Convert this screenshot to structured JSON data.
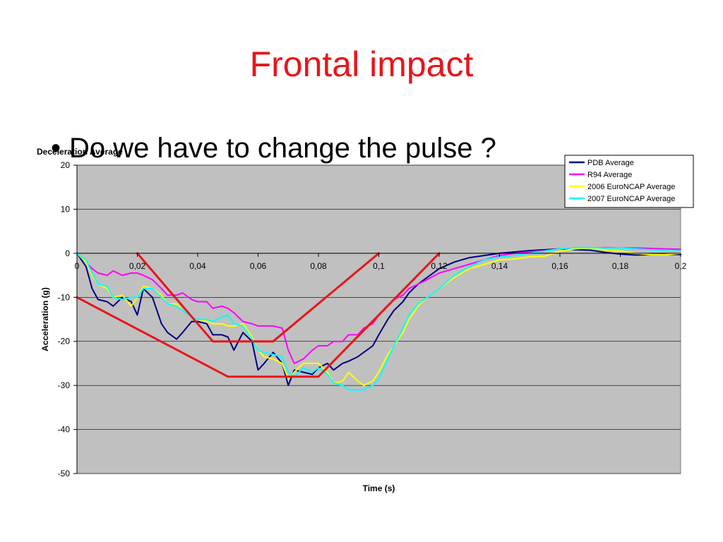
{
  "slide": {
    "title": "Frontal impact",
    "bullet_text": "Do we have to change the pulse ?"
  },
  "chart_data": {
    "type": "line",
    "title": "Deceleration Average",
    "xlabel": "Time (s)",
    "ylabel": "Acceleration (g)",
    "xlim": [
      0,
      0.2
    ],
    "ylim": [
      -50,
      20
    ],
    "xticks": [
      0,
      0.02,
      0.04,
      0.06,
      0.08,
      0.1,
      0.12,
      0.14,
      0.16,
      0.18,
      0.2
    ],
    "xtick_labels": [
      "0",
      "0,02",
      "0,04",
      "0,06",
      "0,08",
      "0,1",
      "0,12",
      "0,14",
      "0,16",
      "0,18",
      "0,2"
    ],
    "yticks": [
      20,
      10,
      0,
      -10,
      -20,
      -30,
      -40,
      -50
    ],
    "ytick_labels": [
      "20",
      "10",
      "0",
      "-10",
      "-20",
      "-30",
      "-40",
      "-50"
    ],
    "grid": "horizontal",
    "plot_background": "#c0c0c0",
    "legend_position": "top-right",
    "series": [
      {
        "name": "PDB Average",
        "color": "#000080",
        "x": [
          0,
          0.003,
          0.005,
          0.007,
          0.01,
          0.012,
          0.015,
          0.018,
          0.02,
          0.022,
          0.025,
          0.028,
          0.03,
          0.033,
          0.035,
          0.038,
          0.04,
          0.043,
          0.045,
          0.048,
          0.05,
          0.052,
          0.055,
          0.058,
          0.06,
          0.062,
          0.065,
          0.068,
          0.07,
          0.072,
          0.075,
          0.078,
          0.08,
          0.083,
          0.085,
          0.088,
          0.09,
          0.093,
          0.095,
          0.098,
          0.1,
          0.103,
          0.105,
          0.108,
          0.11,
          0.113,
          0.116,
          0.12,
          0.125,
          0.13,
          0.135,
          0.14,
          0.145,
          0.15,
          0.155,
          0.16,
          0.165,
          0.17,
          0.175,
          0.18,
          0.185,
          0.19,
          0.195,
          0.2
        ],
        "y": [
          0,
          -3,
          -8,
          -10.5,
          -11,
          -12,
          -10,
          -11,
          -14,
          -8,
          -10,
          -16,
          -18,
          -19.5,
          -18,
          -15.5,
          -15.5,
          -16,
          -18.5,
          -18.5,
          -19,
          -22,
          -18,
          -20,
          -26.5,
          -25,
          -22.5,
          -25,
          -30,
          -26.5,
          -27,
          -27.5,
          -26,
          -25,
          -26.5,
          -25,
          -24.5,
          -23.5,
          -22.5,
          -21,
          -18.5,
          -15,
          -13,
          -11,
          -9,
          -7,
          -5.5,
          -3.5,
          -2,
          -1,
          -0.5,
          0,
          0.3,
          0.6,
          0.8,
          1,
          0.8,
          0.7,
          0.2,
          -0.2,
          -0.4,
          -0.3,
          -0.2,
          -0.3
        ]
      },
      {
        "name": "R94 Average",
        "color": "#ff00ff",
        "x": [
          0,
          0.003,
          0.005,
          0.007,
          0.01,
          0.012,
          0.015,
          0.018,
          0.02,
          0.022,
          0.025,
          0.028,
          0.03,
          0.033,
          0.035,
          0.038,
          0.04,
          0.043,
          0.045,
          0.048,
          0.05,
          0.052,
          0.055,
          0.058,
          0.06,
          0.062,
          0.065,
          0.068,
          0.07,
          0.072,
          0.075,
          0.078,
          0.08,
          0.083,
          0.085,
          0.088,
          0.09,
          0.093,
          0.095,
          0.098,
          0.1,
          0.103,
          0.105,
          0.108,
          0.11,
          0.113,
          0.116,
          0.12,
          0.125,
          0.13,
          0.135,
          0.14,
          0.145,
          0.15,
          0.155,
          0.16,
          0.165,
          0.17,
          0.175,
          0.18,
          0.185,
          0.19,
          0.195,
          0.2
        ],
        "y": [
          0,
          -2,
          -3.5,
          -4.5,
          -5,
          -4,
          -5,
          -4.5,
          -4.5,
          -5,
          -6,
          -8,
          -9.5,
          -9.5,
          -9,
          -10.5,
          -11,
          -11,
          -12.5,
          -12,
          -12.5,
          -13.5,
          -15.5,
          -16,
          -16.5,
          -16.5,
          -16.5,
          -17,
          -22,
          -25,
          -24,
          -22,
          -21,
          -21,
          -20,
          -20,
          -18.5,
          -18.5,
          -17,
          -16,
          -14,
          -12,
          -10.5,
          -9.5,
          -8,
          -7,
          -6,
          -4.5,
          -3.5,
          -2.5,
          -1.5,
          -0.5,
          0,
          0.3,
          0.6,
          1,
          1.2,
          1.2,
          1.3,
          1.2,
          1.2,
          1.1,
          1,
          0.9
        ]
      },
      {
        "name": "2006 EuroNCAP Average",
        "color": "#ffff00",
        "x": [
          0,
          0.003,
          0.005,
          0.007,
          0.01,
          0.012,
          0.015,
          0.018,
          0.02,
          0.022,
          0.025,
          0.028,
          0.03,
          0.033,
          0.035,
          0.038,
          0.04,
          0.043,
          0.045,
          0.048,
          0.05,
          0.052,
          0.055,
          0.058,
          0.06,
          0.062,
          0.065,
          0.068,
          0.07,
          0.072,
          0.075,
          0.078,
          0.08,
          0.083,
          0.085,
          0.088,
          0.09,
          0.093,
          0.095,
          0.098,
          0.1,
          0.103,
          0.105,
          0.108,
          0.11,
          0.113,
          0.116,
          0.12,
          0.125,
          0.13,
          0.135,
          0.14,
          0.145,
          0.15,
          0.155,
          0.16,
          0.165,
          0.17,
          0.175,
          0.18,
          0.185,
          0.19,
          0.195,
          0.2
        ],
        "y": [
          0,
          -2,
          -5,
          -7,
          -8,
          -10,
          -9.5,
          -12,
          -10,
          -7.5,
          -8,
          -9.5,
          -11.5,
          -11.5,
          -13,
          -14.5,
          -15,
          -15.5,
          -16,
          -16,
          -16.5,
          -16.5,
          -16,
          -19,
          -22,
          -23.5,
          -24,
          -25,
          -28.5,
          -27,
          -25,
          -25,
          -25,
          -27,
          -29.5,
          -29,
          -27,
          -29,
          -30,
          -29,
          -27,
          -23,
          -21,
          -18,
          -15,
          -12,
          -10,
          -8,
          -5.5,
          -3.5,
          -2.5,
          -1.5,
          -1.3,
          -0.8,
          -0.7,
          0.5,
          1,
          1.2,
          0.7,
          0.5,
          0,
          -0.3,
          -0.3,
          0
        ]
      },
      {
        "name": "2007 EuroNCAP Average",
        "color": "#00ffff",
        "x": [
          0,
          0.003,
          0.005,
          0.007,
          0.01,
          0.012,
          0.015,
          0.018,
          0.02,
          0.022,
          0.025,
          0.028,
          0.03,
          0.033,
          0.035,
          0.038,
          0.04,
          0.043,
          0.045,
          0.048,
          0.05,
          0.052,
          0.055,
          0.058,
          0.06,
          0.062,
          0.065,
          0.068,
          0.07,
          0.072,
          0.075,
          0.078,
          0.08,
          0.083,
          0.085,
          0.088,
          0.09,
          0.093,
          0.095,
          0.098,
          0.1,
          0.103,
          0.105,
          0.108,
          0.11,
          0.113,
          0.116,
          0.12,
          0.125,
          0.13,
          0.135,
          0.14,
          0.145,
          0.15,
          0.155,
          0.16,
          0.165,
          0.17,
          0.175,
          0.18,
          0.185,
          0.19,
          0.195,
          0.2
        ],
        "y": [
          0,
          -1.5,
          -4.5,
          -7,
          -7.5,
          -10,
          -10.5,
          -10,
          -10,
          -8,
          -8,
          -10,
          -11.5,
          -12,
          -13,
          -14.5,
          -15,
          -15,
          -15.5,
          -14.5,
          -14,
          -16,
          -16.5,
          -19.5,
          -22,
          -22.5,
          -23,
          -23.5,
          -27,
          -28,
          -26,
          -27,
          -26,
          -27.5,
          -29.5,
          -30,
          -31,
          -31,
          -31,
          -30,
          -28.5,
          -24,
          -21,
          -17,
          -14,
          -11.5,
          -10,
          -8,
          -5,
          -3,
          -1.5,
          -0.8,
          -0.5,
          0,
          0.5,
          1,
          1.3,
          1.3,
          1.2,
          1.2,
          1,
          0.8,
          0.5,
          0.5
        ]
      },
      {
        "name": "",
        "color": "#e8151b",
        "x": [
          0,
          0.05,
          0.08,
          0.12
        ],
        "y": [
          -10,
          -28,
          -28,
          0
        ]
      },
      {
        "name": "",
        "color": "#e8151b",
        "x": [
          0.02,
          0.045,
          0.065,
          0.1
        ],
        "y": [
          0,
          -20,
          -20,
          0
        ]
      }
    ]
  }
}
